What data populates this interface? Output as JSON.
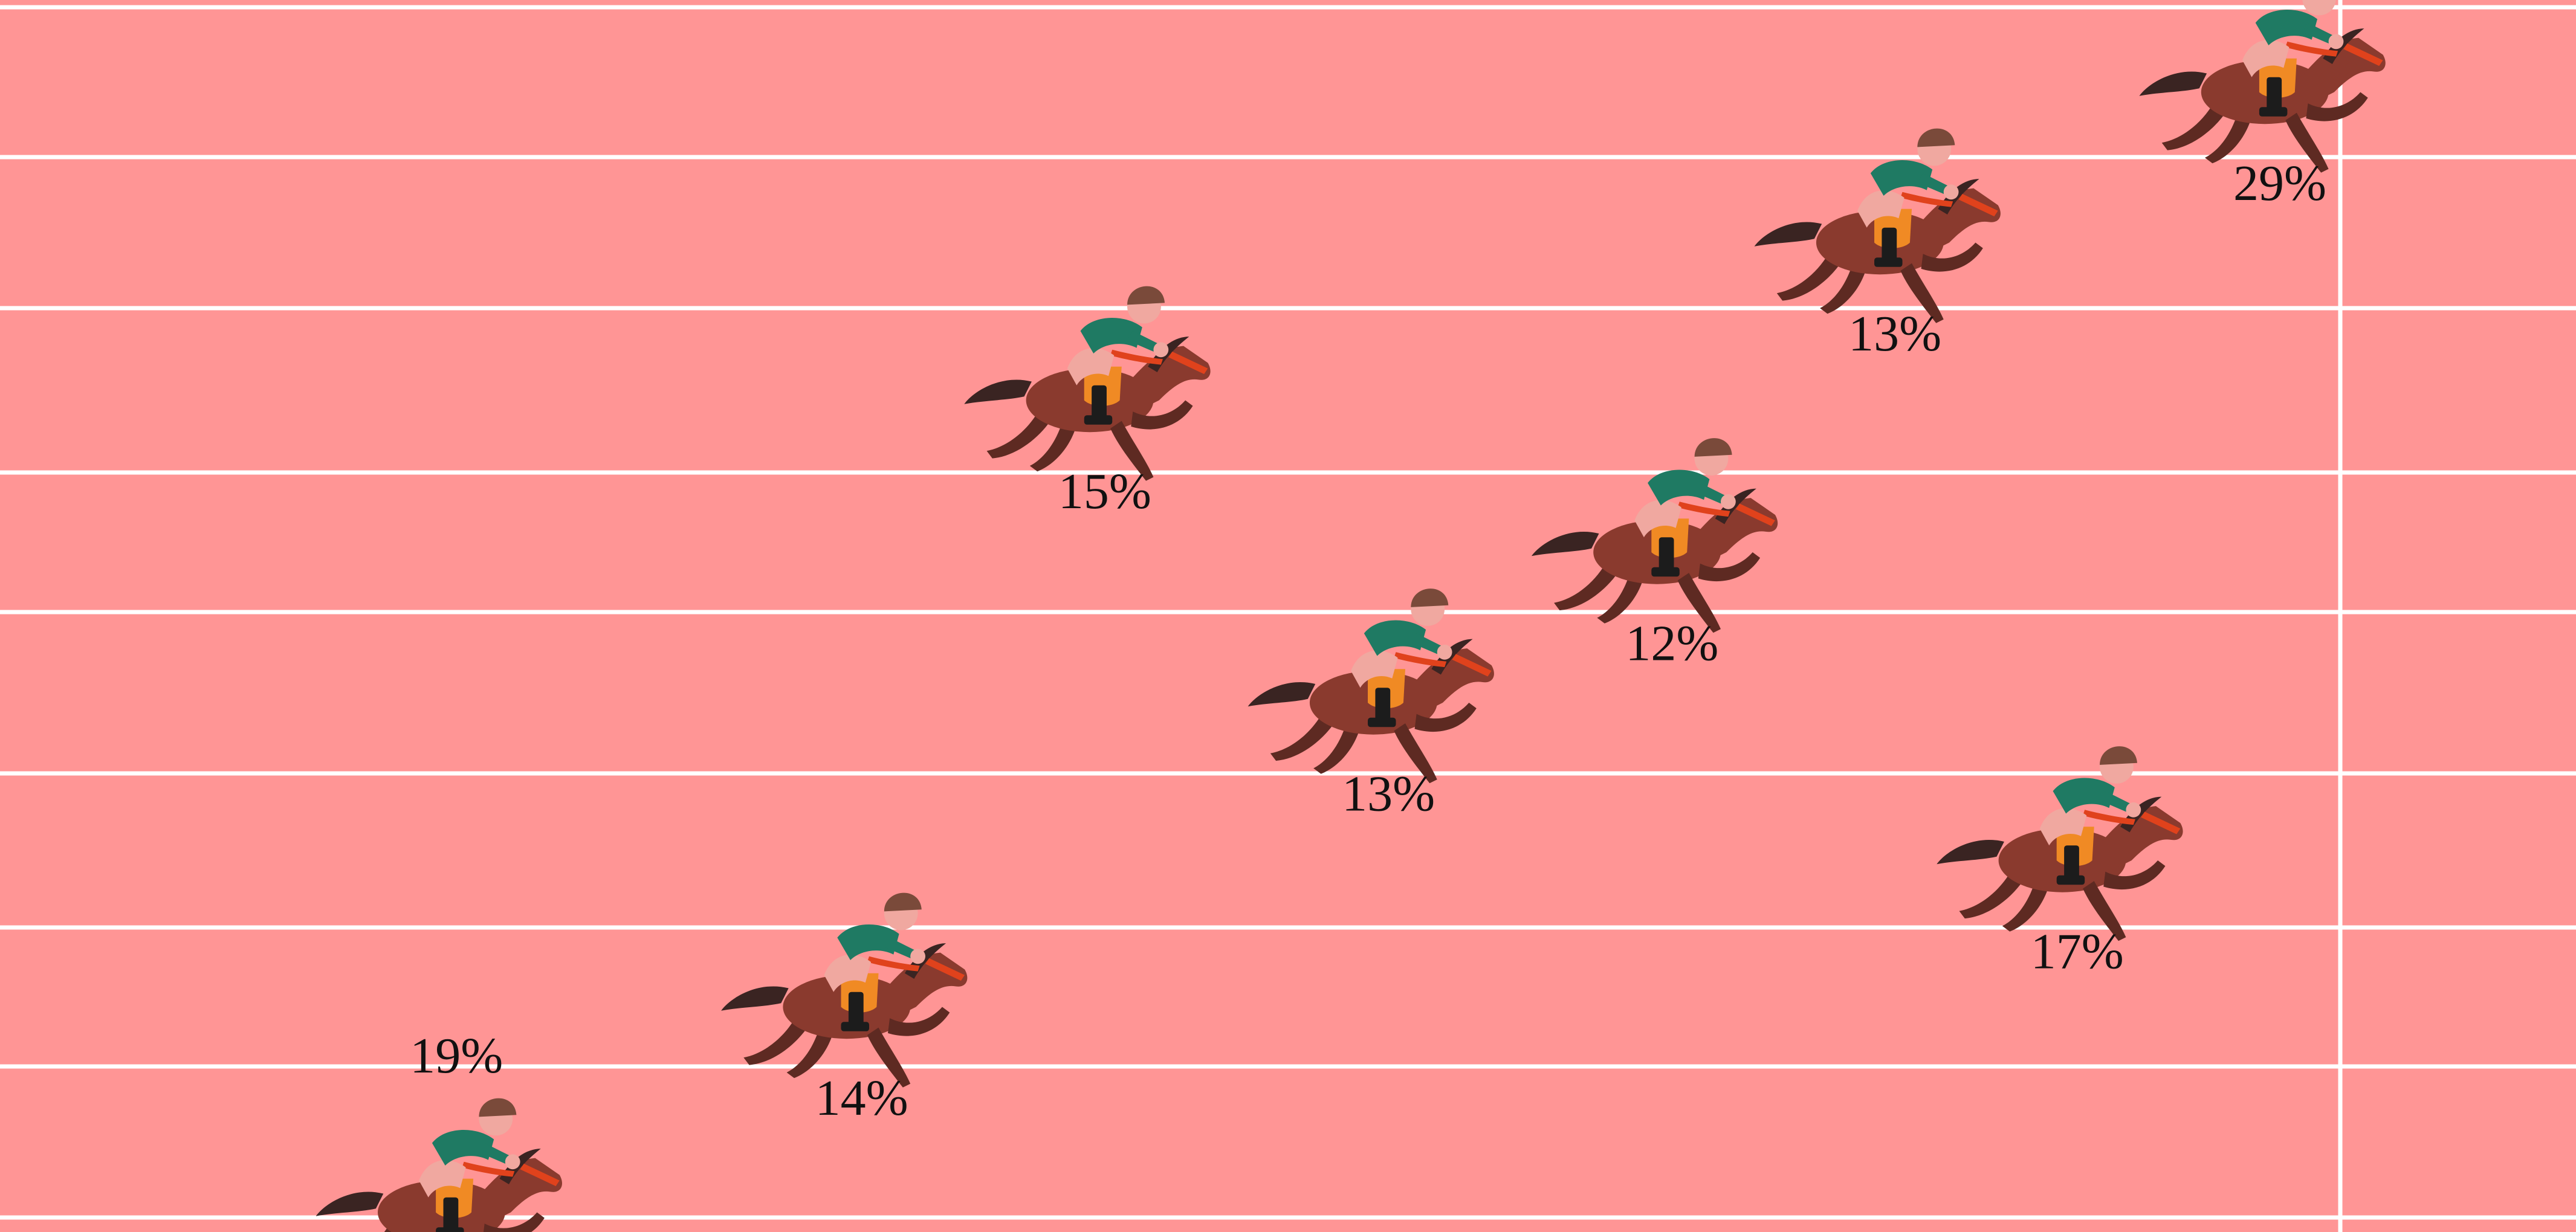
{
  "colors": {
    "track": "#ff9595",
    "lane_line": "#ffffff",
    "horse": "#8a3a2e",
    "horse_dark": "#5e2a22",
    "mane_tail": "#3a2422",
    "jockey_shirt": "#1f7a63",
    "jockey_skin": "#f0a8a0",
    "saddle": "#f08a24",
    "helmet": "#7a4a3a",
    "boot": "#1c1c1c",
    "bridle": "#e0421c",
    "text": "#111111"
  },
  "icon": "horse-racing-icon",
  "chart_data": {
    "type": "scatter",
    "title": "",
    "xlabel": "",
    "ylabel": "",
    "x_range": [
      0,
      100
    ],
    "finish_line_at": 100,
    "lanes": [
      {
        "lane": 1,
        "label": "29%",
        "value": 29,
        "progress": 100
      },
      {
        "lane": 2,
        "label": "13%",
        "value": 13,
        "progress": 81
      },
      {
        "lane": 3,
        "label": "15%",
        "value": 15,
        "progress": 42
      },
      {
        "lane": 4,
        "label": "12%",
        "value": 12,
        "progress": 70
      },
      {
        "lane": 5,
        "label": "13%",
        "value": 13,
        "progress": 56
      },
      {
        "lane": 6,
        "label": "17%",
        "value": 17,
        "progress": 90
      },
      {
        "lane": 7,
        "label": "14%",
        "value": 14,
        "progress": 30
      },
      {
        "lane": 8,
        "label": "19%",
        "value": 19,
        "progress": 10
      }
    ]
  }
}
